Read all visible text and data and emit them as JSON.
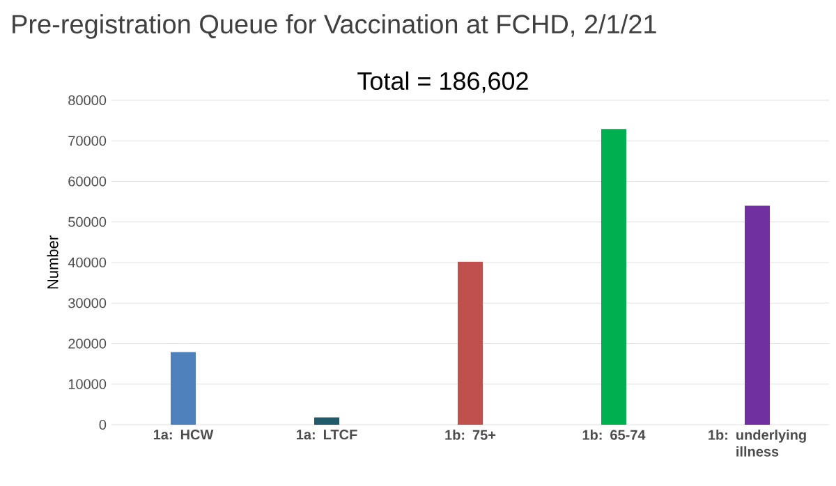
{
  "chart_data": {
    "type": "bar",
    "title": "Pre-registration Queue for Vaccination at FCHD, 2/1/21",
    "ylabel": "Number",
    "annotations": [
      "Total = 186,602"
    ],
    "categories": [
      "1a: HCW",
      "1a: LTCF",
      "1b: 75+",
      "1b: 65-74",
      "1b: underlying illness"
    ],
    "values": [
      17900,
      1800,
      40200,
      72900,
      54000
    ],
    "colors": [
      "#4f81bd",
      "#215a69",
      "#c0504d",
      "#00b050",
      "#7030a0"
    ],
    "ylim": [
      0,
      80000
    ],
    "yticks": [
      0,
      10000,
      20000,
      30000,
      40000,
      50000,
      60000,
      70000,
      80000
    ],
    "grid": "y"
  }
}
